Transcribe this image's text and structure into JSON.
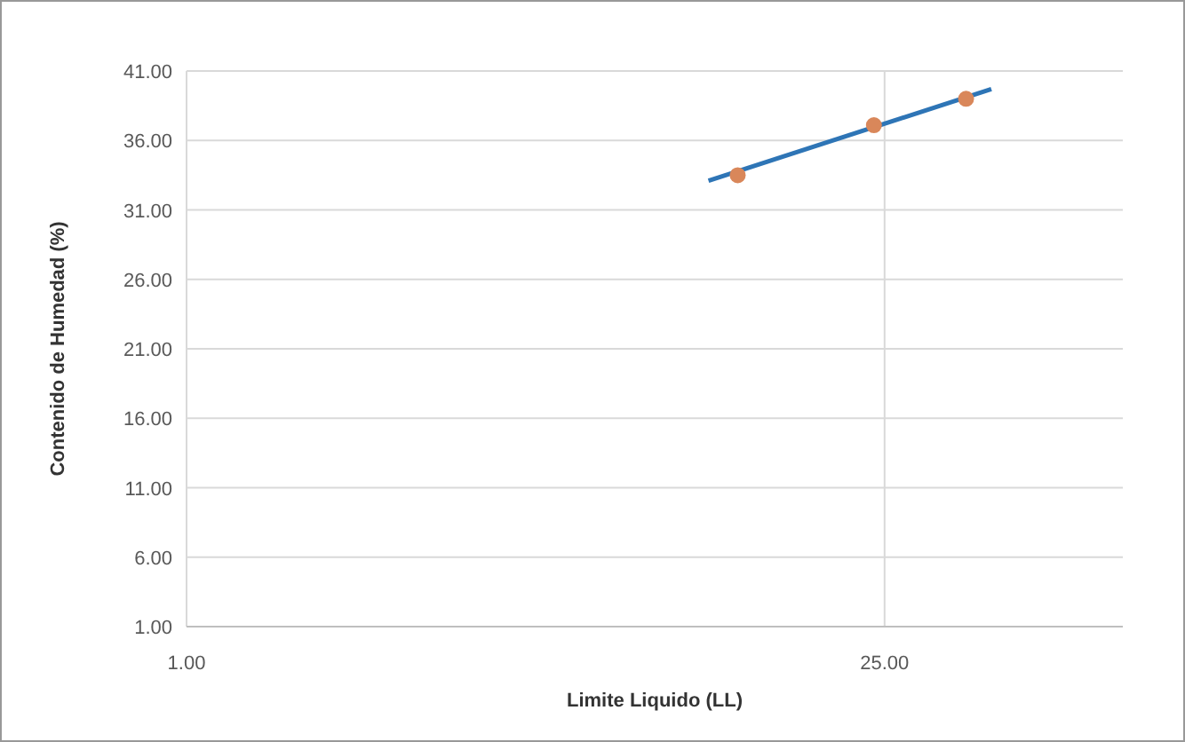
{
  "chart_data": {
    "type": "scatter",
    "xlabel": "Limite Liquido (LL)",
    "ylabel": "Contenido de Humedad (%)",
    "log": "x",
    "xlim": [
      1,
      75
    ],
    "xticks": [
      {
        "value": 1,
        "label": "1.00"
      },
      {
        "value": 25,
        "label": "25.00"
      }
    ],
    "ylim": [
      1,
      41
    ],
    "yticks": [
      {
        "value": 1,
        "label": "1.00"
      },
      {
        "value": 6,
        "label": "6.00"
      },
      {
        "value": 11,
        "label": "11.00"
      },
      {
        "value": 16,
        "label": "16.00"
      },
      {
        "value": 21,
        "label": "21.00"
      },
      {
        "value": 26,
        "label": "26.00"
      },
      {
        "value": 31,
        "label": "31.00"
      },
      {
        "value": 36,
        "label": "36.00"
      },
      {
        "value": 41,
        "label": "41.00"
      }
    ],
    "grid": true,
    "marker": "circle",
    "series": [
      {
        "type": "line",
        "color": "#2e75b6",
        "x": [
          11.1,
          40.9
        ],
        "values": [
          33.1,
          39.7
        ],
        "marker": "none"
      },
      {
        "color": "#d9875a",
        "x": [
          12.7,
          23.8,
          36.4
        ],
        "values": [
          33.5,
          37.1,
          39.0
        ]
      }
    ]
  }
}
